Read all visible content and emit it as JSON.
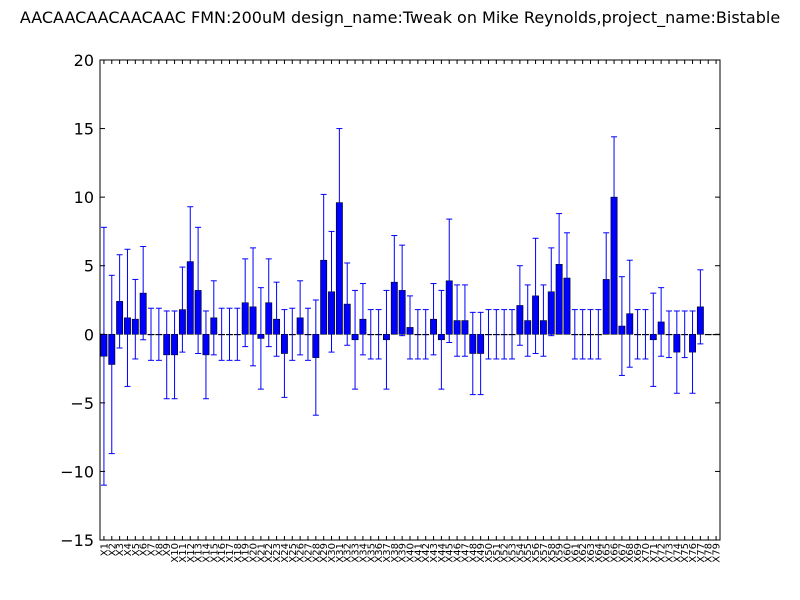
{
  "chart_data": {
    "type": "bar",
    "title": "AACAACAACAACAAC  FMN:200uM  design_name:Tweak on Mike Reynolds,project_name:Bistable",
    "xlabel": "",
    "ylabel": "",
    "ylim": [
      -15,
      20
    ],
    "yticks": [
      -15,
      -10,
      -5,
      0,
      5,
      10,
      15,
      20
    ],
    "grid": false,
    "bar_color": "#0000ff",
    "error_color": "#0000ff",
    "categories": [
      "X1",
      "X2",
      "X3",
      "X4",
      "X5",
      "X6",
      "X7",
      "X8",
      "X9",
      "X10",
      "X11",
      "X12",
      "X13",
      "X14",
      "X15",
      "X16",
      "X17",
      "X18",
      "X19",
      "X20",
      "X21",
      "X22",
      "X23",
      "X24",
      "X25",
      "X26",
      "X27",
      "X28",
      "X29",
      "X30",
      "X31",
      "X32",
      "X33",
      "X34",
      "X35",
      "X36",
      "X37",
      "X38",
      "X39",
      "X40",
      "X41",
      "X42",
      "X43",
      "X44",
      "X45",
      "X46",
      "X47",
      "X48",
      "X49",
      "X50",
      "X51",
      "X52",
      "X53",
      "X54",
      "X55",
      "X56",
      "X57",
      "X58",
      "X59",
      "X60",
      "X61",
      "X62",
      "X63",
      "X64",
      "X65",
      "X66",
      "X67",
      "X68",
      "X69",
      "X70",
      "X71",
      "X72",
      "X73",
      "X74",
      "X75",
      "X76",
      "X77",
      "X78",
      "X79"
    ],
    "values": [
      -1.6,
      -2.2,
      2.4,
      1.2,
      1.1,
      3.0,
      0.0,
      0.0,
      -1.5,
      -1.5,
      1.8,
      5.3,
      3.2,
      -1.5,
      1.2,
      0.0,
      0.0,
      0.0,
      2.3,
      2.0,
      -0.3,
      2.3,
      1.1,
      -1.4,
      0.0,
      1.2,
      0.0,
      -1.7,
      5.4,
      3.1,
      9.6,
      2.2,
      -0.4,
      1.1,
      0.0,
      0.0,
      -0.4,
      3.8,
      3.2,
      0.5,
      0.0,
      0.0,
      1.1,
      -0.4,
      3.9,
      1.0,
      1.0,
      -1.4,
      -1.4,
      0.0,
      0.0,
      0.0,
      0.0,
      2.1,
      1.0,
      2.8,
      1.0,
      3.1,
      5.1,
      4.1,
      0.0,
      0.0,
      0.0,
      0.0,
      4.0,
      10.0,
      0.6,
      1.5,
      0.0,
      0.0,
      -0.4,
      0.9,
      0.0,
      -1.3,
      0.0,
      -1.3,
      2.0,
      0.0,
      0.0
    ],
    "errors": [
      9.4,
      6.5,
      3.4,
      5.0,
      2.9,
      3.4,
      1.9,
      1.9,
      3.2,
      3.2,
      3.1,
      4.0,
      4.6,
      3.2,
      2.7,
      1.9,
      1.9,
      1.9,
      3.2,
      4.3,
      3.7,
      3.2,
      2.7,
      3.2,
      1.9,
      2.7,
      1.9,
      4.2,
      4.8,
      4.4,
      5.4,
      3.0,
      3.6,
      2.6,
      1.8,
      1.8,
      3.6,
      3.4,
      3.3,
      2.3,
      1.8,
      1.8,
      2.6,
      3.6,
      4.5,
      2.6,
      2.6,
      3.0,
      3.0,
      1.8,
      1.8,
      1.8,
      1.8,
      2.9,
      2.6,
      4.2,
      2.6,
      3.2,
      3.7,
      3.3,
      1.8,
      1.8,
      1.8,
      1.8,
      3.4,
      4.4,
      3.6,
      3.9,
      1.8,
      1.8,
      3.4,
      2.5,
      1.7,
      3.0,
      1.7,
      3.0,
      2.7,
      0.0,
      0.0
    ]
  }
}
